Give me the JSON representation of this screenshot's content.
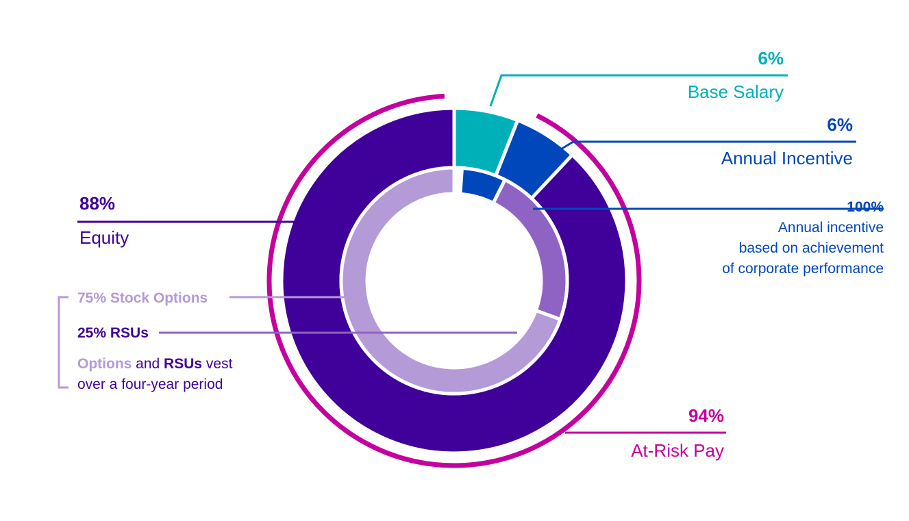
{
  "colors": {
    "base": "#00b0b9",
    "incentive": "#0047bb",
    "equity": "#40009a",
    "options": "#b49ad6",
    "rsus": "#8f63c4",
    "at_risk": "#c4009e"
  },
  "chart_data": {
    "type": "pie",
    "title": "",
    "outer_ring": [
      {
        "name": "Base Salary",
        "value": 6
      },
      {
        "name": "Annual Incentive",
        "value": 6
      },
      {
        "name": "Equity",
        "value": 88
      }
    ],
    "inner_ring": [
      {
        "name": "Annual incentive",
        "value": 6
      },
      {
        "name": "RSUs",
        "value": 22
      },
      {
        "name": "Stock Options",
        "value": 66
      }
    ],
    "at_risk_arc": {
      "name": "At-Risk Pay",
      "value": 94
    }
  },
  "labels": {
    "base_pct": "6%",
    "base_name": "Base Salary",
    "incentive_pct": "6%",
    "incentive_name": "Annual Incentive",
    "perf_pct": "100%",
    "perf_line1": "Annual incentive",
    "perf_line2": "based on achievement",
    "perf_line3": "of corporate performance",
    "equity_pct": "88%",
    "equity_name": "Equity",
    "options": "75% Stock Options",
    "rsus": "25% RSUs",
    "vest_options": "Options",
    "vest_and": " and ",
    "vest_rsus": "RSUs",
    "vest_rest": " vest",
    "vest_line2": "over a four-year period",
    "risk_pct": "94%",
    "risk_name": "At-Risk Pay"
  }
}
